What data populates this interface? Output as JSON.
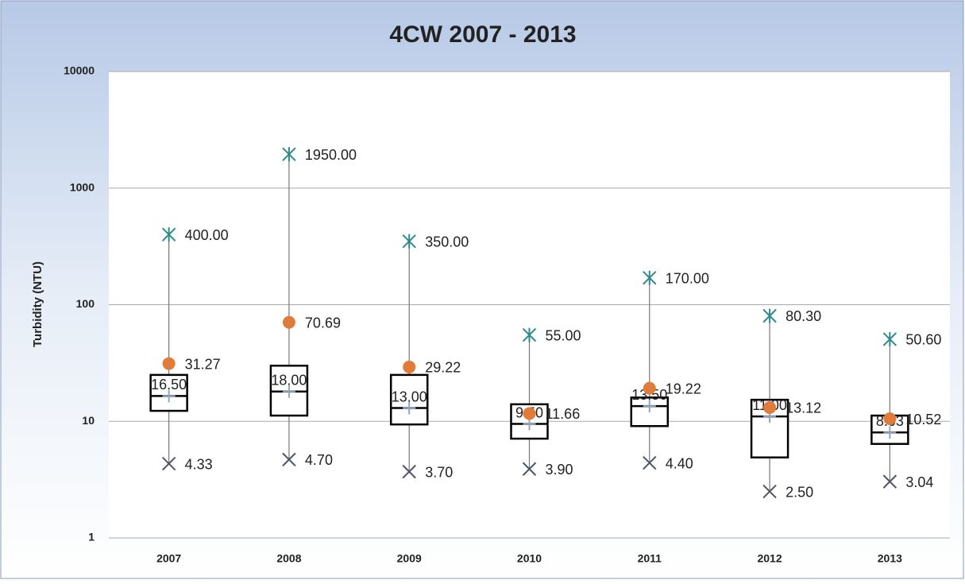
{
  "chart_data": {
    "type": "box",
    "title": "4CW 2007 - 2013",
    "y_label": "Turbidity (NTU)",
    "categories": [
      "2007",
      "2008",
      "2009",
      "2010",
      "2011",
      "2012",
      "2013"
    ],
    "maximum": {
      "values": [
        400,
        1950,
        350,
        55,
        170,
        80.3,
        50.6
      ],
      "value_labels": [
        "400.00",
        "1950.00",
        "350.00",
        "55.00",
        "170.00",
        "80.30",
        "50.60"
      ],
      "color": "#2e8b8b"
    },
    "minimum": {
      "values": [
        4.33,
        4.7,
        3.7,
        3.9,
        4.4,
        2.5,
        3.04
      ],
      "value_labels": [
        "4.33",
        "4.70",
        "3.70",
        "3.90",
        "4.40",
        "2.50",
        "3.04"
      ],
      "color": "#50556a"
    },
    "mean": {
      "values": [
        31.27,
        70.69,
        29.22,
        11.66,
        19.22,
        13.12,
        10.52
      ],
      "value_labels": [
        "31.27",
        "70.69",
        "29.22",
        "11.66",
        "19.22",
        "13.12",
        "10.52"
      ],
      "color": "#e07b39"
    },
    "median": {
      "values": [
        16.5,
        18,
        13,
        9.5,
        13.5,
        11,
        8.03
      ],
      "value_labels": [
        "16.50",
        "18.00",
        "13.00",
        "9.50",
        "13.50",
        "11.00",
        "8.03"
      ],
      "color": "#8fa6c0"
    },
    "q1": [
      12.3,
      11.2,
      9.4,
      7.1,
      9.1,
      4.9,
      6.4
    ],
    "q3": [
      25,
      30,
      25,
      14,
      16,
      15.3,
      11.2
    ],
    "ylim": [
      1,
      10000
    ],
    "yticks": [
      1,
      10,
      100,
      1000,
      10000
    ],
    "log_scale": true,
    "grid": true
  }
}
